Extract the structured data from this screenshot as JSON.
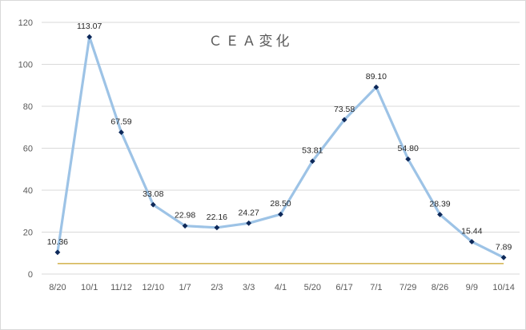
{
  "chart_data": {
    "type": "line",
    "title": "ＣＥＡ変化",
    "xlabel": "",
    "ylabel": "",
    "categories": [
      "8/20",
      "10/1",
      "11/12",
      "12/10",
      "1/7",
      "2/3",
      "3/3",
      "4/1",
      "5/20",
      "6/17",
      "7/1",
      "7/29",
      "8/26",
      "9/9",
      "10/14"
    ],
    "series": [
      {
        "values": [
          10.36,
          113.07,
          67.59,
          33.08,
          22.98,
          22.16,
          24.27,
          28.5,
          53.81,
          73.58,
          89.1,
          54.8,
          28.39,
          15.44,
          7.89
        ],
        "data_labels": [
          "10.36",
          "113.07",
          "67.59",
          "33.08",
          "22.98",
          "22.16",
          "24.27",
          "28.50",
          "53.81",
          "73.58",
          "89.10",
          "54.80",
          "28.39",
          "15.44",
          "7.89"
        ]
      },
      {
        "values": [
          5,
          5,
          5,
          5,
          5,
          5,
          5,
          5,
          5,
          5,
          5,
          5,
          5,
          5,
          5
        ]
      }
    ],
    "ylim": [
      0,
      120
    ],
    "yticks": [
      0,
      20,
      40,
      60,
      80,
      100,
      120
    ],
    "ytick_labels": [
      "0",
      "20",
      "40",
      "60",
      "80",
      "100",
      "120"
    ],
    "grid": true,
    "legend": "none",
    "colors": {
      "main_line": "#9dc3e6",
      "markers": "#0d2859",
      "reference_line": "#c9a227",
      "grid": "#d9d9d9",
      "text": "#595959"
    }
  }
}
